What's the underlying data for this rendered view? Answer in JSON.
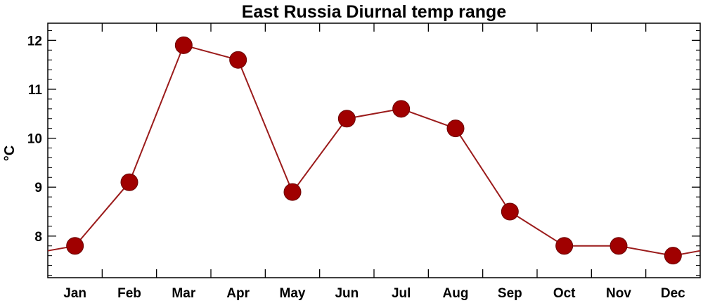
{
  "chart_data": {
    "type": "line",
    "title": "East Russia Diurnal temp range",
    "xlabel": "",
    "ylabel": "°C",
    "categories": [
      "Jan",
      "Feb",
      "Mar",
      "Apr",
      "May",
      "Jun",
      "Jul",
      "Aug",
      "Sep",
      "Oct",
      "Nov",
      "Dec"
    ],
    "values": [
      7.8,
      9.1,
      11.9,
      11.6,
      8.9,
      10.4,
      10.6,
      10.2,
      8.5,
      7.8,
      7.8,
      7.6
    ],
    "wrap_values": {
      "left": 7.7,
      "right": 7.7
    },
    "ylim": [
      7.15,
      12.35
    ],
    "yticks": [
      8,
      9,
      10,
      11,
      12
    ],
    "grid": false,
    "colors": {
      "line": "#9b1b1b",
      "marker": "#a00000",
      "axis": "#000000"
    }
  }
}
